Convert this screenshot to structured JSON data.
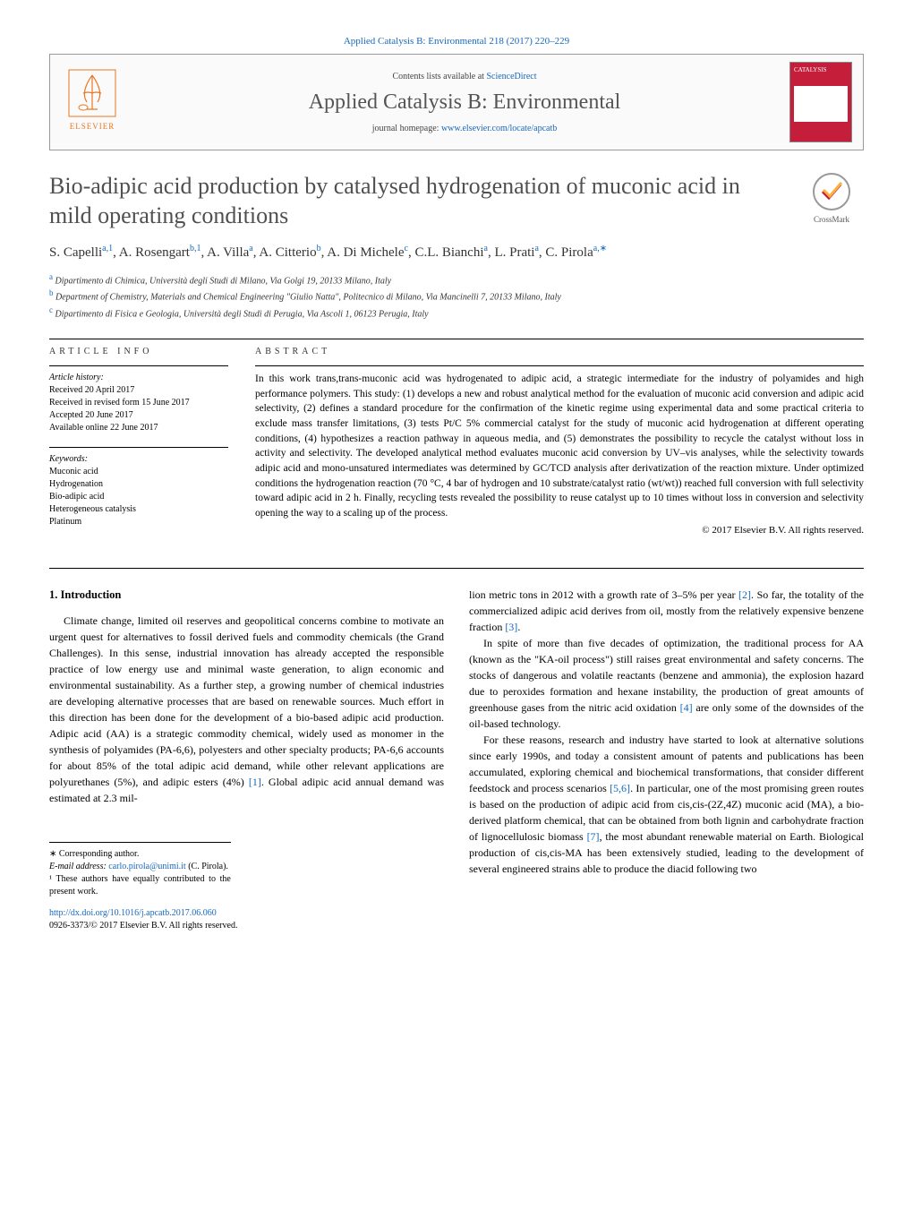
{
  "header": {
    "top_link_text": "Applied Catalysis B: Environmental 218 (2017) 220–229",
    "contents_text": "Contents lists available at ",
    "contents_link": "ScienceDirect",
    "journal_name": "Applied Catalysis B: Environmental",
    "homepage_prefix": "journal homepage: ",
    "homepage_link": "www.elsevier.com/locate/apcatb",
    "elsevier_text": "ELSEVIER",
    "cover_top": "CATALYSIS"
  },
  "crossmark": {
    "label": "CrossMark"
  },
  "title": "Bio-adipic acid production by catalysed hydrogenation of muconic acid in mild operating conditions",
  "authors_html": "S. Capelli<sup>a,1</sup>, A. Rosengart<sup>b,1</sup>, A. Villa<sup>a</sup>, A. Citterio<sup>b</sup>, A. Di Michele<sup>c</sup>, C.L. Bianchi<sup>a</sup>, L. Prati<sup>a</sup>, C. Pirola<sup>a,∗</sup>",
  "affiliations": [
    {
      "sup": "a",
      "text": "Dipartimento di Chimica, Università degli Studi di Milano, Via Golgi 19, 20133 Milano, Italy"
    },
    {
      "sup": "b",
      "text": "Department of Chemistry, Materials and Chemical Engineering \"Giulio Natta\", Politecnico di Milano, Via Mancinelli 7, 20133 Milano, Italy"
    },
    {
      "sup": "c",
      "text": "Dipartimento di Fisica e Geologia, Università degli Studi di Perugia, Via Ascoli 1, 06123 Perugia, Italy"
    }
  ],
  "article_info": {
    "label": "article info",
    "history_title": "Article history:",
    "history": [
      "Received 20 April 2017",
      "Received in revised form 15 June 2017",
      "Accepted 20 June 2017",
      "Available online 22 June 2017"
    ],
    "keywords_title": "Keywords:",
    "keywords": [
      "Muconic acid",
      "Hydrogenation",
      "Bio-adipic acid",
      "Heterogeneous catalysis",
      "Platinum"
    ]
  },
  "abstract": {
    "label": "abstract",
    "text": "In this work trans,trans-muconic acid was hydrogenated to adipic acid, a strategic intermediate for the industry of polyamides and high performance polymers. This study: (1) develops a new and robust analytical method for the evaluation of muconic acid conversion and adipic acid selectivity, (2) defines a standard procedure for the confirmation of the kinetic regime using experimental data and some practical criteria to exclude mass transfer limitations, (3) tests Pt/C 5% commercial catalyst for the study of muconic acid hydrogenation at different operating conditions, (4) hypothesizes a reaction pathway in aqueous media, and (5) demonstrates the possibility to recycle the catalyst without loss in activity and selectivity. The developed analytical method evaluates muconic acid conversion by UV–vis analyses, while the selectivity towards adipic acid and mono-unsatured intermediates was determined by GC/TCD analysis after derivatization of the reaction mixture. Under optimized conditions the hydrogenation reaction (70 °C, 4 bar of hydrogen and 10 substrate/catalyst ratio (wt/wt)) reached full conversion with full selectivity toward adipic acid in 2 h. Finally, recycling tests revealed the possibility to reuse catalyst up to 10 times without loss in conversion and selectivity opening the way to a scaling up of the process.",
    "copyright": "© 2017 Elsevier B.V. All rights reserved."
  },
  "intro": {
    "heading": "1. Introduction",
    "left_col": "Climate change, limited oil reserves and geopolitical concerns combine to motivate an urgent quest for alternatives to fossil derived fuels and commodity chemicals (the Grand Challenges). In this sense, industrial innovation has already accepted the responsible practice of low energy use and minimal waste generation, to align economic and environmental sustainability. As a further step, a growing number of chemical industries are developing alternative processes that are based on renewable sources. Much effort in this direction has been done for the development of a bio-based adipic acid production. Adipic acid (AA) is a strategic commodity chemical, widely used as monomer in the synthesis of polyamides (PA-6,6), polyesters and other specialty products; PA-6,6 accounts for about 85% of the total adipic acid demand, while other relevant applications are polyurethanes (5%), and adipic esters (4%) ",
    "left_col_ref1": "[1]",
    "left_col_tail": ". Global adipic acid annual demand was estimated at 2.3 mil-",
    "right_p1_a": "lion metric tons in 2012 with a growth rate of 3–5% per year ",
    "right_p1_ref2": "[2]",
    "right_p1_b": ". So far, the totality of the commercialized adipic acid derives from oil, mostly from the relatively expensive benzene fraction ",
    "right_p1_ref3": "[3]",
    "right_p1_c": ".",
    "right_p2_a": "In spite of more than five decades of optimization, the traditional process for AA (known as the \"KA-oil process\") still raises great environmental and safety concerns. The stocks of dangerous and volatile reactants (benzene and ammonia), the explosion hazard due to peroxides formation and hexane instability, the production of great amounts of greenhouse gases from the nitric acid oxidation ",
    "right_p2_ref4": "[4]",
    "right_p2_b": " are only some of the downsides of the oil-based technology.",
    "right_p3_a": "For these reasons, research and industry have started to look at alternative solutions since early 1990s, and today a consistent amount of patents and publications has been accumulated, exploring chemical and biochemical transformations, that consider different feedstock and process scenarios ",
    "right_p3_ref56": "[5,6]",
    "right_p3_b": ". In particular, one of the most promising green routes is based on the production of adipic acid from cis,cis-(2Z,4Z) muconic acid (MA), a bio-derived platform chemical, that can be obtained from both lignin and carbohydrate fraction of lignocellulosic biomass ",
    "right_p3_ref7": "[7]",
    "right_p3_c": ", the most abundant renewable material on Earth. Biological production of cis,cis-MA has been extensively studied, leading to the development of several engineered strains able to produce the diacid following two"
  },
  "footnotes": {
    "corr": "∗ Corresponding author.",
    "email_label": "E-mail address: ",
    "email": "carlo.pirola@unimi.it",
    "email_person": " (C. Pirola).",
    "equal": "¹ These authors have equally contributed to the present work."
  },
  "doi": {
    "link": "http://dx.doi.org/10.1016/j.apcatb.2017.06.060",
    "issn": "0926-3373/© 2017 Elsevier B.V. All rights reserved."
  },
  "styles": {
    "link_color": "#1668bd",
    "title_color": "#505050",
    "brand_orange": "#e87722",
    "cover_red": "#c41e3a",
    "body_text_color": "#000000"
  }
}
